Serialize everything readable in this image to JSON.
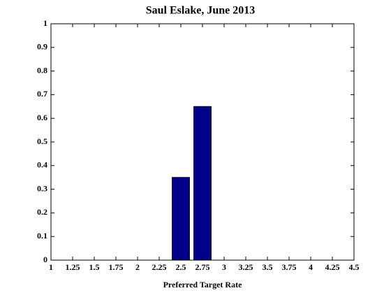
{
  "chart_data": {
    "type": "bar",
    "title": "Saul Eslake, June 2013",
    "xlabel": "Preferred Target Rate",
    "x": [
      2.5,
      2.75
    ],
    "values": [
      0.35,
      0.65
    ],
    "color": "#00008b",
    "xlim": [
      1,
      4.5
    ],
    "xticks": [
      1,
      1.25,
      1.5,
      1.75,
      2,
      2.25,
      2.5,
      2.75,
      3,
      3.25,
      3.5,
      3.75,
      4,
      4.25,
      4.5
    ],
    "ylim": [
      0,
      1
    ],
    "yticks": [
      0,
      0.1,
      0.2,
      0.3,
      0.4,
      0.5,
      0.6,
      0.7,
      0.8,
      0.9,
      1
    ],
    "grid": false
  }
}
